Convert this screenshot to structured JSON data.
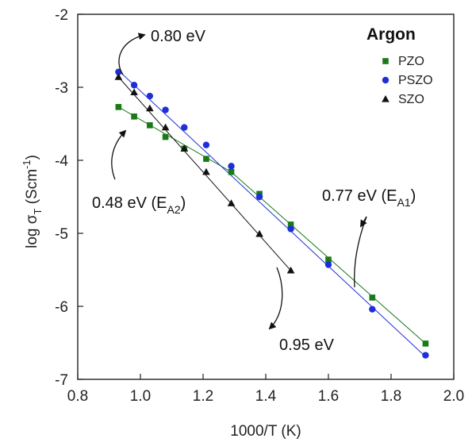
{
  "chart_data": {
    "type": "scatter",
    "xlabel": "1000/T (K)",
    "ylabel": {
      "prefix": "log σ",
      "sub": "T",
      "unit": " (Scm",
      "sup": "-1",
      "close": ")"
    },
    "xlim": [
      0.8,
      2.0
    ],
    "ylim": [
      -7,
      -2
    ],
    "xticks": [
      "0.8",
      "1.0",
      "1.2",
      "1.4",
      "1.6",
      "1.8",
      "2.0"
    ],
    "yticks": [
      "-2",
      "-3",
      "-4",
      "-5",
      "-6",
      "-7"
    ],
    "grid": false,
    "legend": {
      "title": "Argon",
      "position": "top-right"
    },
    "series": [
      {
        "name": "PZO",
        "color": "#1a7a1a",
        "marker": "square",
        "x": [
          0.93,
          0.98,
          1.03,
          1.08,
          1.14,
          1.21,
          1.29,
          1.38,
          1.48,
          1.6,
          1.74,
          1.91
        ],
        "y": [
          -3.27,
          -3.4,
          -3.52,
          -3.68,
          -3.84,
          -3.98,
          -4.16,
          -4.46,
          -4.88,
          -5.36,
          -5.88,
          -6.51
        ],
        "fits": [
          {
            "x": [
              0.93,
              1.29
            ],
            "y": [
              -3.27,
              -4.16
            ]
          },
          {
            "x": [
              1.29,
              1.91
            ],
            "y": [
              -4.16,
              -6.51
            ]
          }
        ]
      },
      {
        "name": "PSZO",
        "color": "#1f2fd6",
        "marker": "circle",
        "x": [
          0.93,
          0.98,
          1.03,
          1.08,
          1.14,
          1.21,
          1.29,
          1.38,
          1.48,
          1.6,
          1.74,
          1.91
        ],
        "y": [
          -2.79,
          -2.97,
          -3.12,
          -3.31,
          -3.55,
          -3.79,
          -4.08,
          -4.5,
          -4.94,
          -5.43,
          -6.04,
          -6.67
        ],
        "fits": [
          {
            "x": [
              0.93,
              1.91
            ],
            "y": [
              -2.77,
              -6.69
            ]
          }
        ]
      },
      {
        "name": "SZO",
        "color": "#111111",
        "marker": "triangle",
        "x": [
          0.93,
          0.98,
          1.03,
          1.08,
          1.14,
          1.21,
          1.29,
          1.38,
          1.48
        ],
        "y": [
          -2.86,
          -3.07,
          -3.29,
          -3.55,
          -3.84,
          -4.16,
          -4.59,
          -5.01,
          -5.51
        ],
        "fits": [
          {
            "x": [
              0.93,
              1.48
            ],
            "y": [
              -2.86,
              -5.51
            ]
          }
        ]
      }
    ],
    "annotations": [
      {
        "id": "ea-080",
        "text": "0.80 eV",
        "sub": "",
        "tail": ""
      },
      {
        "id": "ea-048",
        "text": "0.48 eV (E",
        "sub": "A2",
        "tail": ")"
      },
      {
        "id": "ea-077",
        "text": "0.77 eV (E",
        "sub": "A1",
        "tail": ")"
      },
      {
        "id": "ea-095",
        "text": "0.95 eV",
        "sub": "",
        "tail": ""
      }
    ]
  }
}
